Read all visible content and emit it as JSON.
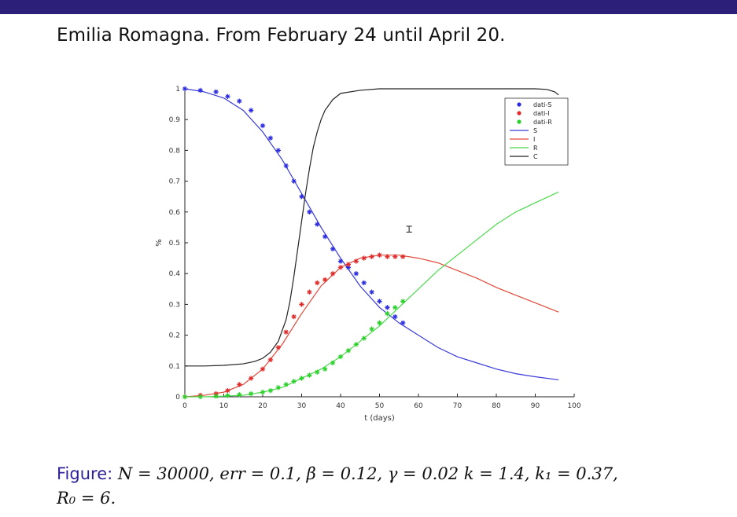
{
  "slide": {
    "title": "Emilia Romagna. From February 24 until April 20.",
    "accent_color": "#2b1f7a"
  },
  "caption": {
    "label": "Figure:",
    "N": "N = 30000,",
    "err": "err = 0.1,",
    "beta": "β = 0.12,",
    "gamma": "γ = 0.02",
    "k": "k = 1.4,",
    "k1": "k₁ = 0.37,",
    "R0": "R₀ = 6."
  },
  "chart_data": {
    "type": "line",
    "xlabel": "t (days)",
    "ylabel": "%",
    "xlim": [
      0,
      100
    ],
    "ylim": [
      0,
      1
    ],
    "xticks": [
      0,
      10,
      20,
      30,
      40,
      50,
      60,
      70,
      80,
      90,
      100
    ],
    "yticks": [
      0,
      0.1,
      0.2,
      0.3,
      0.4,
      0.5,
      0.6,
      0.7,
      0.8,
      0.9,
      1
    ],
    "legend_position": "top-right",
    "legend": [
      {
        "label": "dati-S",
        "kind": "marker",
        "color": "#2a2ae0"
      },
      {
        "label": "dati-I",
        "kind": "marker",
        "color": "#e02a2a"
      },
      {
        "label": "dati-R",
        "kind": "marker",
        "color": "#2ad02a"
      },
      {
        "label": "S",
        "kind": "line",
        "color": "#3a3ad8"
      },
      {
        "label": "I",
        "kind": "line",
        "color": "#e04a3a"
      },
      {
        "label": "R",
        "kind": "line",
        "color": "#4ad84a"
      },
      {
        "label": "C",
        "kind": "line",
        "color": "#222222"
      }
    ],
    "series": [
      {
        "name": "S",
        "style": "line",
        "color": "#3a3ad8",
        "x": [
          0,
          5,
          10,
          15,
          20,
          25,
          30,
          35,
          40,
          45,
          50,
          55,
          60,
          65,
          70,
          75,
          80,
          85,
          90,
          96
        ],
        "y": [
          1.0,
          0.99,
          0.97,
          0.93,
          0.86,
          0.77,
          0.66,
          0.55,
          0.45,
          0.36,
          0.29,
          0.24,
          0.2,
          0.16,
          0.13,
          0.11,
          0.09,
          0.075,
          0.065,
          0.055
        ]
      },
      {
        "name": "I",
        "style": "line",
        "color": "#e04a3a",
        "x": [
          0,
          5,
          10,
          15,
          20,
          25,
          30,
          35,
          40,
          45,
          50,
          55,
          60,
          65,
          70,
          75,
          80,
          85,
          90,
          96
        ],
        "y": [
          0.0,
          0.005,
          0.015,
          0.04,
          0.09,
          0.17,
          0.27,
          0.36,
          0.42,
          0.45,
          0.46,
          0.46,
          0.45,
          0.435,
          0.41,
          0.385,
          0.355,
          0.33,
          0.305,
          0.275
        ]
      },
      {
        "name": "R",
        "style": "line",
        "color": "#4ad84a",
        "x": [
          0,
          5,
          10,
          15,
          20,
          25,
          30,
          35,
          40,
          45,
          50,
          55,
          60,
          65,
          70,
          75,
          80,
          85,
          90,
          96
        ],
        "y": [
          0.0,
          0.0,
          0.002,
          0.005,
          0.015,
          0.03,
          0.06,
          0.09,
          0.13,
          0.18,
          0.23,
          0.29,
          0.35,
          0.41,
          0.46,
          0.51,
          0.56,
          0.6,
          0.63,
          0.665
        ]
      },
      {
        "name": "C",
        "style": "line",
        "color": "#222222",
        "x": [
          0,
          5,
          10,
          15,
          18,
          20,
          22,
          24,
          26,
          27,
          28,
          29,
          30,
          31,
          32,
          33,
          34,
          35,
          36,
          38,
          40,
          45,
          50,
          60,
          70,
          80,
          90,
          93,
          95,
          96
        ],
        "y": [
          0.1,
          0.1,
          0.102,
          0.107,
          0.115,
          0.125,
          0.145,
          0.18,
          0.25,
          0.31,
          0.39,
          0.48,
          0.57,
          0.66,
          0.74,
          0.81,
          0.86,
          0.9,
          0.93,
          0.965,
          0.985,
          0.995,
          1.0,
          1.0,
          1.0,
          1.0,
          1.0,
          0.998,
          0.99,
          0.98
        ]
      },
      {
        "name": "dati-S",
        "style": "marker",
        "color": "#2a2ae0",
        "x": [
          0,
          4,
          8,
          11,
          14,
          17,
          20,
          22,
          24,
          26,
          28,
          30,
          32,
          34,
          36,
          38,
          40,
          42,
          44,
          46,
          48,
          50,
          52,
          54,
          56
        ],
        "y": [
          1.0,
          0.995,
          0.99,
          0.975,
          0.96,
          0.93,
          0.88,
          0.84,
          0.8,
          0.75,
          0.7,
          0.65,
          0.6,
          0.56,
          0.52,
          0.48,
          0.44,
          0.42,
          0.4,
          0.37,
          0.34,
          0.31,
          0.29,
          0.26,
          0.24
        ]
      },
      {
        "name": "dati-I",
        "style": "marker",
        "color": "#e02a2a",
        "x": [
          0,
          4,
          8,
          11,
          14,
          17,
          20,
          22,
          24,
          26,
          28,
          30,
          32,
          34,
          36,
          38,
          40,
          42,
          44,
          46,
          48,
          50,
          52,
          54,
          56
        ],
        "y": [
          0.0,
          0.005,
          0.01,
          0.02,
          0.04,
          0.06,
          0.09,
          0.12,
          0.16,
          0.21,
          0.26,
          0.3,
          0.34,
          0.37,
          0.38,
          0.4,
          0.42,
          0.43,
          0.44,
          0.45,
          0.455,
          0.46,
          0.455,
          0.455,
          0.455
        ]
      },
      {
        "name": "dati-R",
        "style": "marker",
        "color": "#2ad02a",
        "x": [
          0,
          4,
          8,
          11,
          14,
          17,
          20,
          22,
          24,
          26,
          28,
          30,
          32,
          34,
          36,
          38,
          40,
          42,
          44,
          46,
          48,
          50,
          52,
          54,
          56
        ],
        "y": [
          0.0,
          0.0,
          0.002,
          0.004,
          0.007,
          0.01,
          0.015,
          0.02,
          0.03,
          0.04,
          0.05,
          0.06,
          0.07,
          0.08,
          0.09,
          0.11,
          0.13,
          0.15,
          0.17,
          0.19,
          0.22,
          0.24,
          0.27,
          0.29,
          0.31
        ]
      }
    ]
  }
}
